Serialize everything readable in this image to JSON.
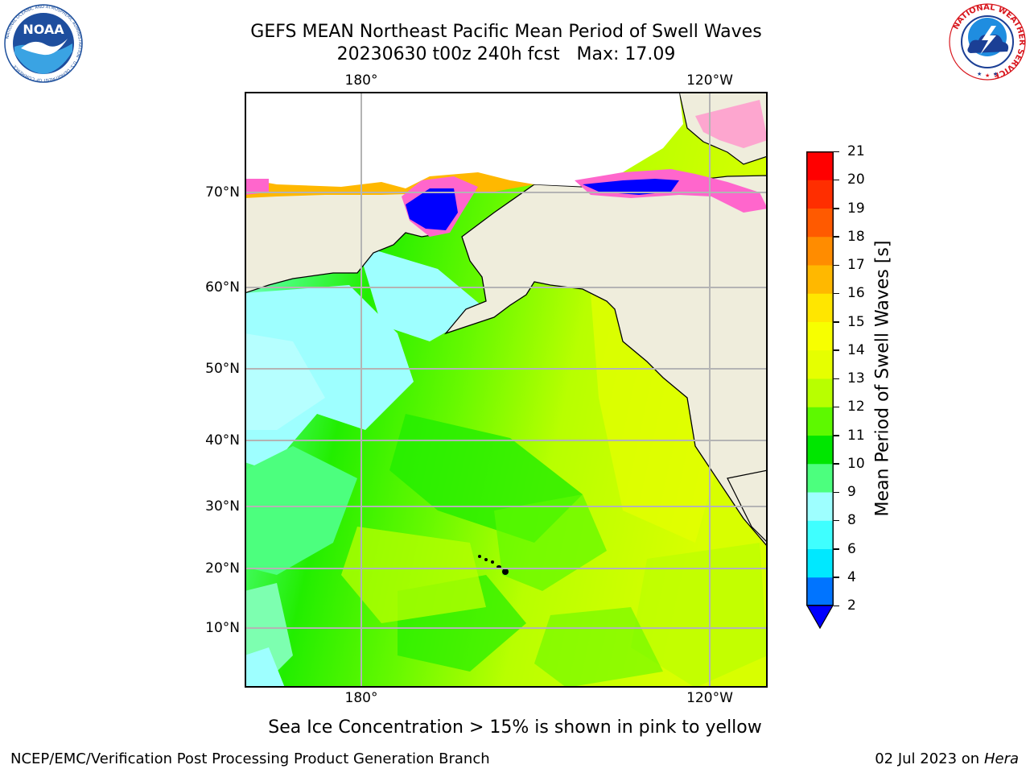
{
  "title": {
    "line1": "GEFS MEAN Northeast Pacific Mean Period of Swell Waves",
    "line2": "20230630 t00z 240h fcst   Max: 17.09"
  },
  "logos": {
    "left": {
      "name": "noaa-logo",
      "text": "NOAA",
      "ring_text": "NATIONAL OCEANIC AND ATMOSPHERIC ADMINISTRATION · U.S. DEPARTMENT OF COMMERCE"
    },
    "right": {
      "name": "nws-logo",
      "ring_text": "NATIONAL WEATHER SERVICE"
    }
  },
  "map": {
    "lon_labels": [
      "180°",
      "120°W"
    ],
    "lat_labels": [
      "70°N",
      "60°N",
      "50°N",
      "40°N",
      "30°N",
      "20°N",
      "10°N"
    ],
    "land_color": "#efeddc",
    "grid_color": "#b4b4b4"
  },
  "colorbar": {
    "title": "Mean Period of Swell Waves [s]",
    "tick_labels": [
      "21",
      "20",
      "19",
      "18",
      "17",
      "16",
      "15",
      "14",
      "13",
      "12",
      "11",
      "10",
      "9",
      "8",
      "6",
      "4",
      "2"
    ],
    "levels": [
      2,
      4,
      6,
      8,
      9,
      10,
      11,
      12,
      13,
      14,
      15,
      16,
      17,
      18,
      19,
      20,
      21
    ],
    "colors": [
      "#0074ff",
      "#00e8ff",
      "#3fffff",
      "#9effff",
      "#4cff7e",
      "#00e600",
      "#5df900",
      "#b8ff00",
      "#e6ff00",
      "#f7ff00",
      "#ffe600",
      "#ffb800",
      "#ff8c00",
      "#ff5a00",
      "#ff2e00",
      "#ff0000"
    ],
    "under_color": "#0000ff"
  },
  "caption": "Sea Ice Concentration > 15% is shown in pink to yellow",
  "footer": {
    "left": "NCEP/EMC/Verification Post Processing Product Generation Branch",
    "right_prefix": "02 Jul 2023 on ",
    "right_host": "Hera"
  }
}
